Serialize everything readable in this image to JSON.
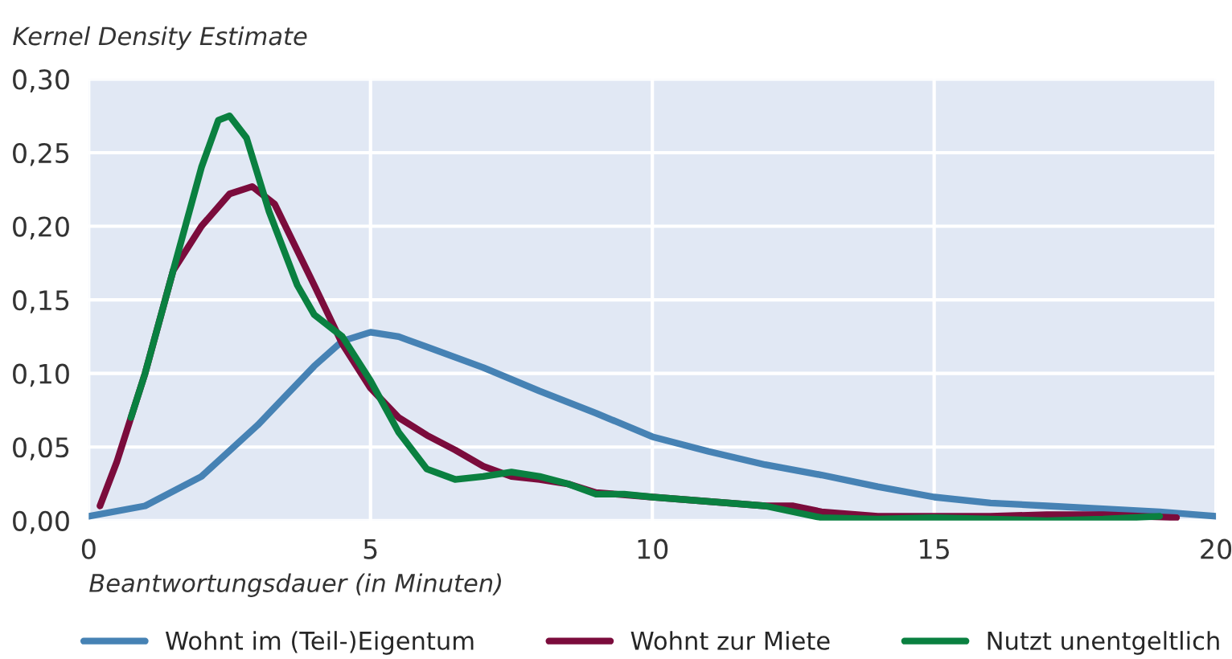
{
  "chart_data": {
    "type": "line",
    "ylabel": "Kernel Density Estimate",
    "xlabel": "Beantwortungsdauer (in Minuten)",
    "xlim": [
      0,
      20
    ],
    "xticks": [
      0,
      5,
      10,
      15,
      20
    ],
    "ylim": [
      0,
      0.3
    ],
    "yticks": [
      {
        "value": 0,
        "label": "0,00"
      },
      {
        "value": 0.05,
        "label": "0,05"
      },
      {
        "value": 0.1,
        "label": "0,10"
      },
      {
        "value": 0.15,
        "label": "0,15"
      },
      {
        "value": 0.2,
        "label": "0,20"
      },
      {
        "value": 0.25,
        "label": "0,25"
      },
      {
        "value": 0.3,
        "label": "0,30"
      }
    ],
    "grid": true,
    "legend": "bottom",
    "line_style": "solid",
    "marker": "none",
    "series": [
      {
        "name": "Wohnt im (Teil-)Eigentum",
        "color": "#4682b4",
        "x": [
          0,
          1,
          2,
          3,
          3.5,
          4,
          4.5,
          5,
          5.5,
          6,
          7,
          8,
          9,
          10,
          11,
          12,
          13,
          14,
          15,
          16,
          17,
          18,
          19,
          20
        ],
        "values": [
          0.003,
          0.01,
          0.03,
          0.065,
          0.085,
          0.105,
          0.122,
          0.128,
          0.125,
          0.118,
          0.104,
          0.088,
          0.073,
          0.057,
          0.047,
          0.038,
          0.031,
          0.023,
          0.016,
          0.012,
          0.01,
          0.008,
          0.006,
          0.003
        ]
      },
      {
        "name": "Wohnt zur Miete",
        "color": "#7b0c3c",
        "x": [
          0.2,
          0.5,
          1,
          1.5,
          2,
          2.5,
          2.9,
          3.3,
          4,
          4.5,
          5,
          5.5,
          6,
          6.5,
          7,
          7.5,
          8,
          8.5,
          9,
          10,
          11,
          12,
          12.5,
          13,
          14,
          15,
          16,
          17,
          18,
          19.3
        ],
        "values": [
          0.01,
          0.04,
          0.1,
          0.17,
          0.2,
          0.222,
          0.227,
          0.215,
          0.16,
          0.12,
          0.09,
          0.07,
          0.058,
          0.048,
          0.037,
          0.03,
          0.028,
          0.025,
          0.019,
          0.016,
          0.013,
          0.01,
          0.01,
          0.006,
          0.003,
          0.003,
          0.003,
          0.004,
          0.004,
          0.002
        ]
      },
      {
        "name": "Nutzt unentgeltlich",
        "color": "#0a8040",
        "x": [
          0.75,
          1,
          1.5,
          2,
          2.3,
          2.5,
          2.8,
          3.2,
          3.7,
          4,
          4.5,
          5,
          5.5,
          6,
          6.5,
          7,
          7.5,
          8,
          8.5,
          9,
          9.5,
          10,
          11,
          12,
          13,
          14,
          15,
          16,
          17,
          18,
          19
        ],
        "values": [
          0.07,
          0.1,
          0.17,
          0.24,
          0.272,
          0.275,
          0.26,
          0.21,
          0.16,
          0.14,
          0.125,
          0.095,
          0.06,
          0.035,
          0.028,
          0.03,
          0.033,
          0.03,
          0.025,
          0.018,
          0.018,
          0.016,
          0.013,
          0.01,
          0.002,
          0.001,
          0.002,
          0.001,
          0.0,
          0.001,
          0.003
        ]
      }
    ]
  }
}
